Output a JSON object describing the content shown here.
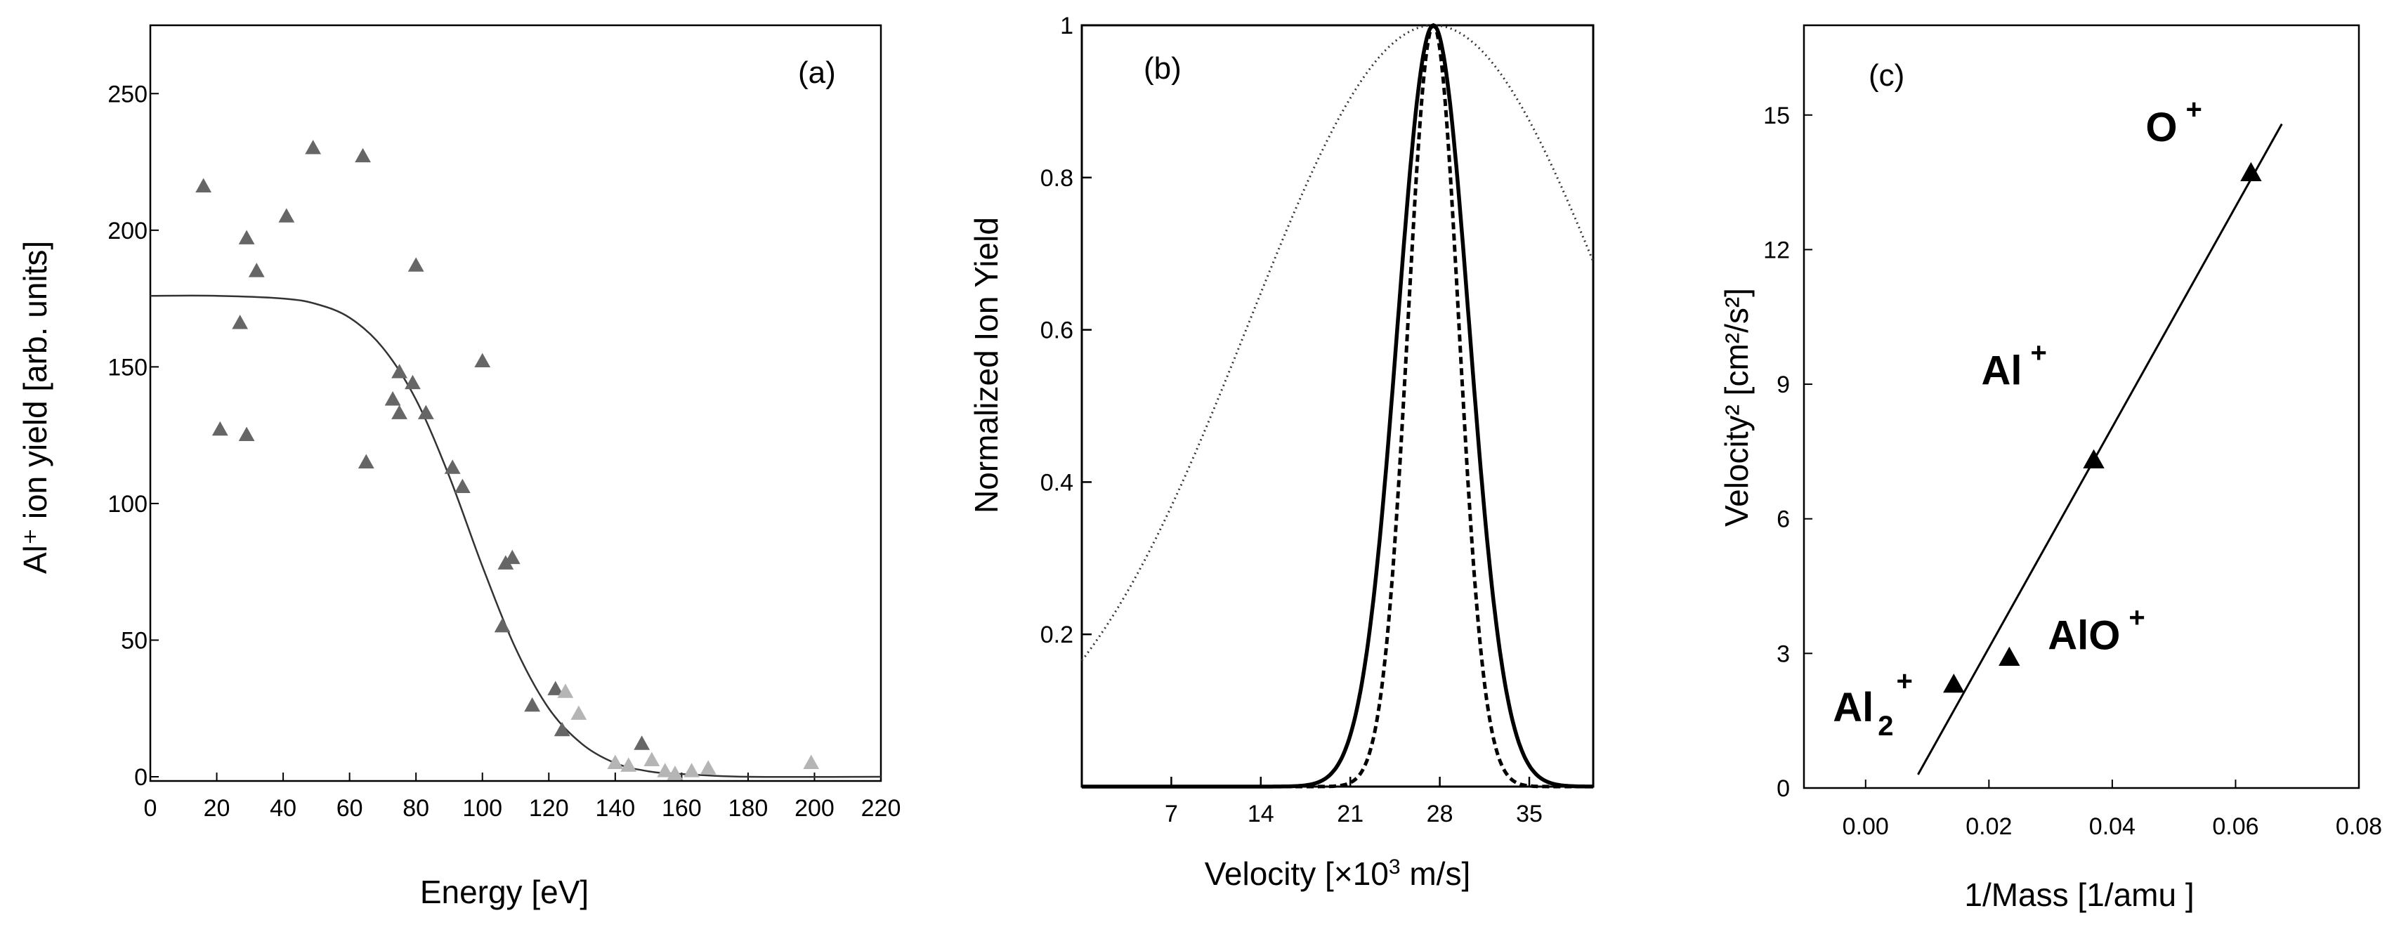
{
  "chart_data": [
    {
      "type": "scatter",
      "panel": "(a)",
      "xlabel": "Energy  [eV]",
      "ylabel": "Al⁺ ion yield [arb. units]",
      "xlim": [
        0,
        220
      ],
      "ylim": [
        0,
        275
      ],
      "xticks": [
        "0",
        "20",
        "40",
        "60",
        "80",
        "100",
        "120",
        "140",
        "160",
        "180",
        "200",
        "220"
      ],
      "yticks": [
        "0",
        "50",
        "100",
        "150",
        "200",
        "250"
      ],
      "colors": {
        "dark": "#666666",
        "light": "#b5b5b5",
        "curve": "#333333"
      },
      "points": [
        {
          "x": 16,
          "y": 216,
          "shade": "dark"
        },
        {
          "x": 21,
          "y": 127,
          "shade": "dark"
        },
        {
          "x": 27,
          "y": 166,
          "shade": "dark"
        },
        {
          "x": 29,
          "y": 197,
          "shade": "dark"
        },
        {
          "x": 29,
          "y": 125,
          "shade": "dark"
        },
        {
          "x": 32,
          "y": 185,
          "shade": "dark"
        },
        {
          "x": 41,
          "y": 205,
          "shade": "dark"
        },
        {
          "x": 49,
          "y": 230,
          "shade": "dark"
        },
        {
          "x": 64,
          "y": 227,
          "shade": "dark"
        },
        {
          "x": 65,
          "y": 115,
          "shade": "dark"
        },
        {
          "x": 73,
          "y": 138,
          "shade": "dark"
        },
        {
          "x": 75,
          "y": 148,
          "shade": "dark"
        },
        {
          "x": 75,
          "y": 133,
          "shade": "dark"
        },
        {
          "x": 79,
          "y": 144,
          "shade": "dark"
        },
        {
          "x": 80,
          "y": 187,
          "shade": "dark"
        },
        {
          "x": 83,
          "y": 133,
          "shade": "dark"
        },
        {
          "x": 91,
          "y": 113,
          "shade": "dark"
        },
        {
          "x": 94,
          "y": 106,
          "shade": "dark"
        },
        {
          "x": 100,
          "y": 152,
          "shade": "dark"
        },
        {
          "x": 106,
          "y": 55,
          "shade": "dark"
        },
        {
          "x": 107,
          "y": 78,
          "shade": "dark"
        },
        {
          "x": 109,
          "y": 80,
          "shade": "dark"
        },
        {
          "x": 115,
          "y": 26,
          "shade": "dark"
        },
        {
          "x": 122,
          "y": 32,
          "shade": "dark"
        },
        {
          "x": 124,
          "y": 17,
          "shade": "dark"
        },
        {
          "x": 125,
          "y": 31,
          "shade": "light"
        },
        {
          "x": 129,
          "y": 23,
          "shade": "light"
        },
        {
          "x": 140,
          "y": 5,
          "shade": "light"
        },
        {
          "x": 144,
          "y": 4,
          "shade": "light"
        },
        {
          "x": 148,
          "y": 12,
          "shade": "dark"
        },
        {
          "x": 151,
          "y": 6,
          "shade": "light"
        },
        {
          "x": 155,
          "y": 2,
          "shade": "light"
        },
        {
          "x": 158,
          "y": 1,
          "shade": "light"
        },
        {
          "x": 163,
          "y": 2,
          "shade": "light"
        },
        {
          "x": 168,
          "y": 3,
          "shade": "light"
        },
        {
          "x": 199,
          "y": 5,
          "shade": "light"
        }
      ],
      "fit": {
        "description": "sigmoid fit",
        "x": [
          0,
          20,
          40,
          50,
          60,
          70,
          80,
          90,
          100,
          110,
          120,
          130,
          140,
          150,
          160,
          180,
          220
        ],
        "y": [
          176,
          176,
          175,
          173,
          168,
          157,
          138,
          110,
          77,
          47,
          25,
          12,
          5,
          2,
          1,
          0,
          0
        ]
      }
    },
    {
      "type": "line",
      "panel": "(b)",
      "xlabel": "Velocity  [×10",
      "xlabel_sup": "3",
      "xlabel_tail": " m/s]",
      "ylabel": "Normalized Ion Yield",
      "xlim": [
        0,
        40
      ],
      "ylim": [
        0,
        1
      ],
      "xticks": [
        "7",
        "14",
        "21",
        "28",
        "35"
      ],
      "xtick_values": [
        7,
        14,
        21,
        28,
        35
      ],
      "yticks": [
        "0.2",
        "0.4",
        "0.6",
        "0.8",
        "1"
      ],
      "ytick_values": [
        0.2,
        0.4,
        0.6,
        0.8,
        1
      ],
      "series": [
        {
          "name": "dotted (broad)",
          "style": "dotted",
          "peak": 27.5,
          "sigma": 14.5
        },
        {
          "name": "solid",
          "style": "solid",
          "peak": 27.5,
          "sigma": 2.8
        },
        {
          "name": "dashed",
          "style": "dashed",
          "peak": 27.5,
          "sigma": 2.0
        }
      ]
    },
    {
      "type": "scatter",
      "panel": "(c)",
      "xlabel": "1/Mass [1/amu ]",
      "ylabel": "Velocity² [cm²/s²]",
      "xlim": [
        -0.01,
        0.08
      ],
      "ylim": [
        0,
        17
      ],
      "xticks": [
        "0.00",
        "0.02",
        "0.04",
        "0.06",
        "0.08"
      ],
      "xtick_values": [
        0.0,
        0.02,
        0.04,
        0.06,
        0.08
      ],
      "yticks": [
        "0",
        "3",
        "6",
        "9",
        "12",
        "15"
      ],
      "ytick_values": [
        0,
        3,
        6,
        9,
        12,
        15
      ],
      "points": [
        {
          "x": 0.0143,
          "y": 2.3,
          "label": "Al",
          "sub": "2",
          "sup": "+"
        },
        {
          "x": 0.0233,
          "y": 2.9,
          "label": "AlO",
          "sub": "",
          "sup": "+"
        },
        {
          "x": 0.037,
          "y": 7.3,
          "label": "Al",
          "sub": "",
          "sup": "+"
        },
        {
          "x": 0.0625,
          "y": 13.7,
          "label": "O",
          "sub": "",
          "sup": "+"
        }
      ],
      "fit": {
        "x": [
          0.0085,
          0.0675
        ],
        "y": [
          0.3,
          14.8
        ]
      }
    }
  ]
}
